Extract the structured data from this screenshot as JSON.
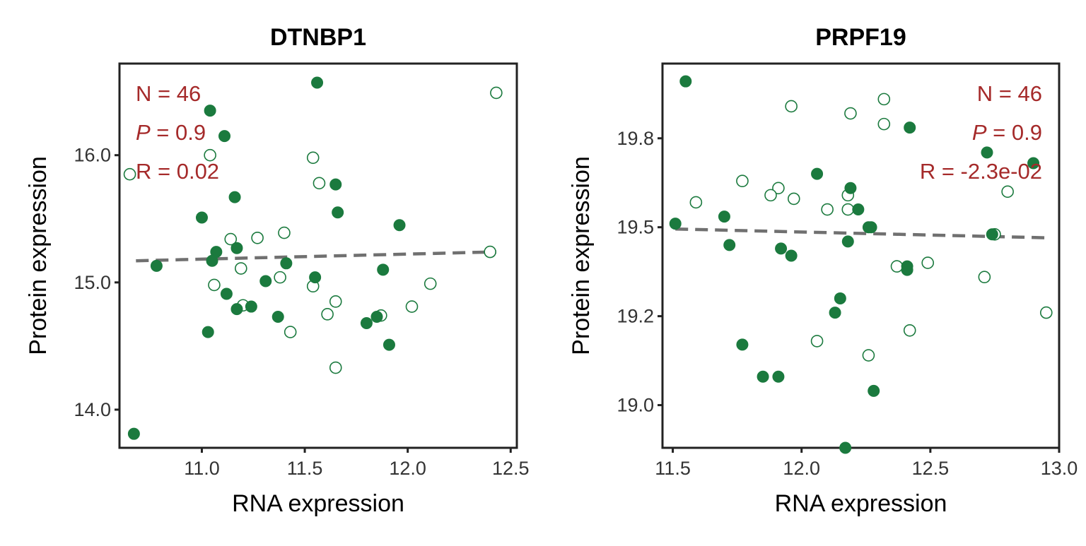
{
  "chart_data": [
    {
      "type": "scatter",
      "title": "DTNBP1",
      "xlabel": "RNA expression",
      "ylabel": "Protein expression",
      "xlim": [
        10.6,
        12.53
      ],
      "ylim": [
        13.7,
        16.72
      ],
      "xticks": [
        11.0,
        11.5,
        12.0,
        12.5
      ],
      "yticks": [
        14.0,
        15.0,
        16.0
      ],
      "xtick_labels": [
        "11.0",
        "11.5",
        "12.0",
        "12.5"
      ],
      "ytick_labels": [
        "14.0",
        "15.0",
        "16.0"
      ],
      "grid": false,
      "annotation": {
        "n": "N = 46",
        "p_label": "P",
        "p_value": " = 0.9",
        "r": "R = 0.02",
        "placement": "top-left"
      },
      "fit_line": {
        "x": [
          10.68,
          12.43
        ],
        "y": [
          15.17,
          15.24
        ]
      },
      "filled_points": [
        [
          11.56,
          16.57
        ],
        [
          11.04,
          16.35
        ],
        [
          11.11,
          16.15
        ],
        [
          11.16,
          15.67
        ],
        [
          11.65,
          15.77
        ],
        [
          11.0,
          15.51
        ],
        [
          11.66,
          15.55
        ],
        [
          11.96,
          15.45
        ],
        [
          11.07,
          15.24
        ],
        [
          11.17,
          15.27
        ],
        [
          11.05,
          15.17
        ],
        [
          10.78,
          15.13
        ],
        [
          11.41,
          15.15
        ],
        [
          11.55,
          15.04
        ],
        [
          11.31,
          15.01
        ],
        [
          11.12,
          14.91
        ],
        [
          11.24,
          14.81
        ],
        [
          11.17,
          14.79
        ],
        [
          11.37,
          14.73
        ],
        [
          11.88,
          15.1
        ],
        [
          11.85,
          14.73
        ],
        [
          11.8,
          14.68
        ],
        [
          11.03,
          14.61
        ],
        [
          11.91,
          14.51
        ],
        [
          10.67,
          13.81
        ]
      ],
      "open_points": [
        [
          12.43,
          16.49
        ],
        [
          11.04,
          16.0
        ],
        [
          10.65,
          15.85
        ],
        [
          11.54,
          15.98
        ],
        [
          11.57,
          15.78
        ],
        [
          11.14,
          15.34
        ],
        [
          11.27,
          15.35
        ],
        [
          11.4,
          15.39
        ],
        [
          11.19,
          15.11
        ],
        [
          11.38,
          15.04
        ],
        [
          11.06,
          14.98
        ],
        [
          11.54,
          14.97
        ],
        [
          11.2,
          14.82
        ],
        [
          12.11,
          14.99
        ],
        [
          12.02,
          14.81
        ],
        [
          11.65,
          14.85
        ],
        [
          11.61,
          14.75
        ],
        [
          11.87,
          14.74
        ],
        [
          11.43,
          14.61
        ],
        [
          11.65,
          14.33
        ],
        [
          12.4,
          15.24
        ]
      ]
    },
    {
      "type": "scatter",
      "title": "PRPF19",
      "xlabel": "RNA expression",
      "ylabel": "Protein expression",
      "xlim": [
        11.46,
        13.0
      ],
      "ylim": [
        18.88,
        19.96
      ],
      "xticks": [
        11.5,
        12.0,
        12.5,
        13.0
      ],
      "yticks": [
        19.0,
        19.25,
        19.5,
        19.75
      ],
      "xtick_labels": [
        "11.5",
        "12.0",
        "12.5",
        "13.0"
      ],
      "ytick_labels": [
        "19.0",
        "19.2",
        "19.5",
        "19.8"
      ],
      "grid": false,
      "annotation": {
        "n": "N = 46",
        "p_label": "P",
        "p_value": " = 0.9",
        "r": "R = -2.3e-02",
        "placement": "top-right"
      },
      "fit_line": {
        "x": [
          11.51,
          12.97
        ],
        "y": [
          19.495,
          19.47
        ]
      },
      "filled_points": [
        [
          11.55,
          19.91
        ],
        [
          12.42,
          19.78
        ],
        [
          12.72,
          19.71
        ],
        [
          12.9,
          19.68
        ],
        [
          12.06,
          19.65
        ],
        [
          12.19,
          19.61
        ],
        [
          12.22,
          19.55
        ],
        [
          11.7,
          19.53
        ],
        [
          12.27,
          19.5
        ],
        [
          12.26,
          19.5
        ],
        [
          11.51,
          19.51
        ],
        [
          12.74,
          19.48
        ],
        [
          11.72,
          19.45
        ],
        [
          12.18,
          19.46
        ],
        [
          11.92,
          19.44
        ],
        [
          11.96,
          19.42
        ],
        [
          12.41,
          19.39
        ],
        [
          12.41,
          19.38
        ],
        [
          12.15,
          19.3
        ],
        [
          12.13,
          19.26
        ],
        [
          11.77,
          19.17
        ],
        [
          11.85,
          19.08
        ],
        [
          11.91,
          19.08
        ],
        [
          12.28,
          19.04
        ],
        [
          12.17,
          18.88
        ]
      ],
      "open_points": [
        [
          12.32,
          19.86
        ],
        [
          11.96,
          19.84
        ],
        [
          12.19,
          19.82
        ],
        [
          12.32,
          19.79
        ],
        [
          11.77,
          19.63
        ],
        [
          11.91,
          19.61
        ],
        [
          11.88,
          19.59
        ],
        [
          11.97,
          19.58
        ],
        [
          12.18,
          19.59
        ],
        [
          11.59,
          19.57
        ],
        [
          12.1,
          19.55
        ],
        [
          12.18,
          19.55
        ],
        [
          12.8,
          19.6
        ],
        [
          12.75,
          19.48
        ],
        [
          12.49,
          19.4
        ],
        [
          12.37,
          19.39
        ],
        [
          12.71,
          19.36
        ],
        [
          12.95,
          19.26
        ],
        [
          12.42,
          19.21
        ],
        [
          12.06,
          19.18
        ],
        [
          12.26,
          19.14
        ]
      ]
    }
  ]
}
